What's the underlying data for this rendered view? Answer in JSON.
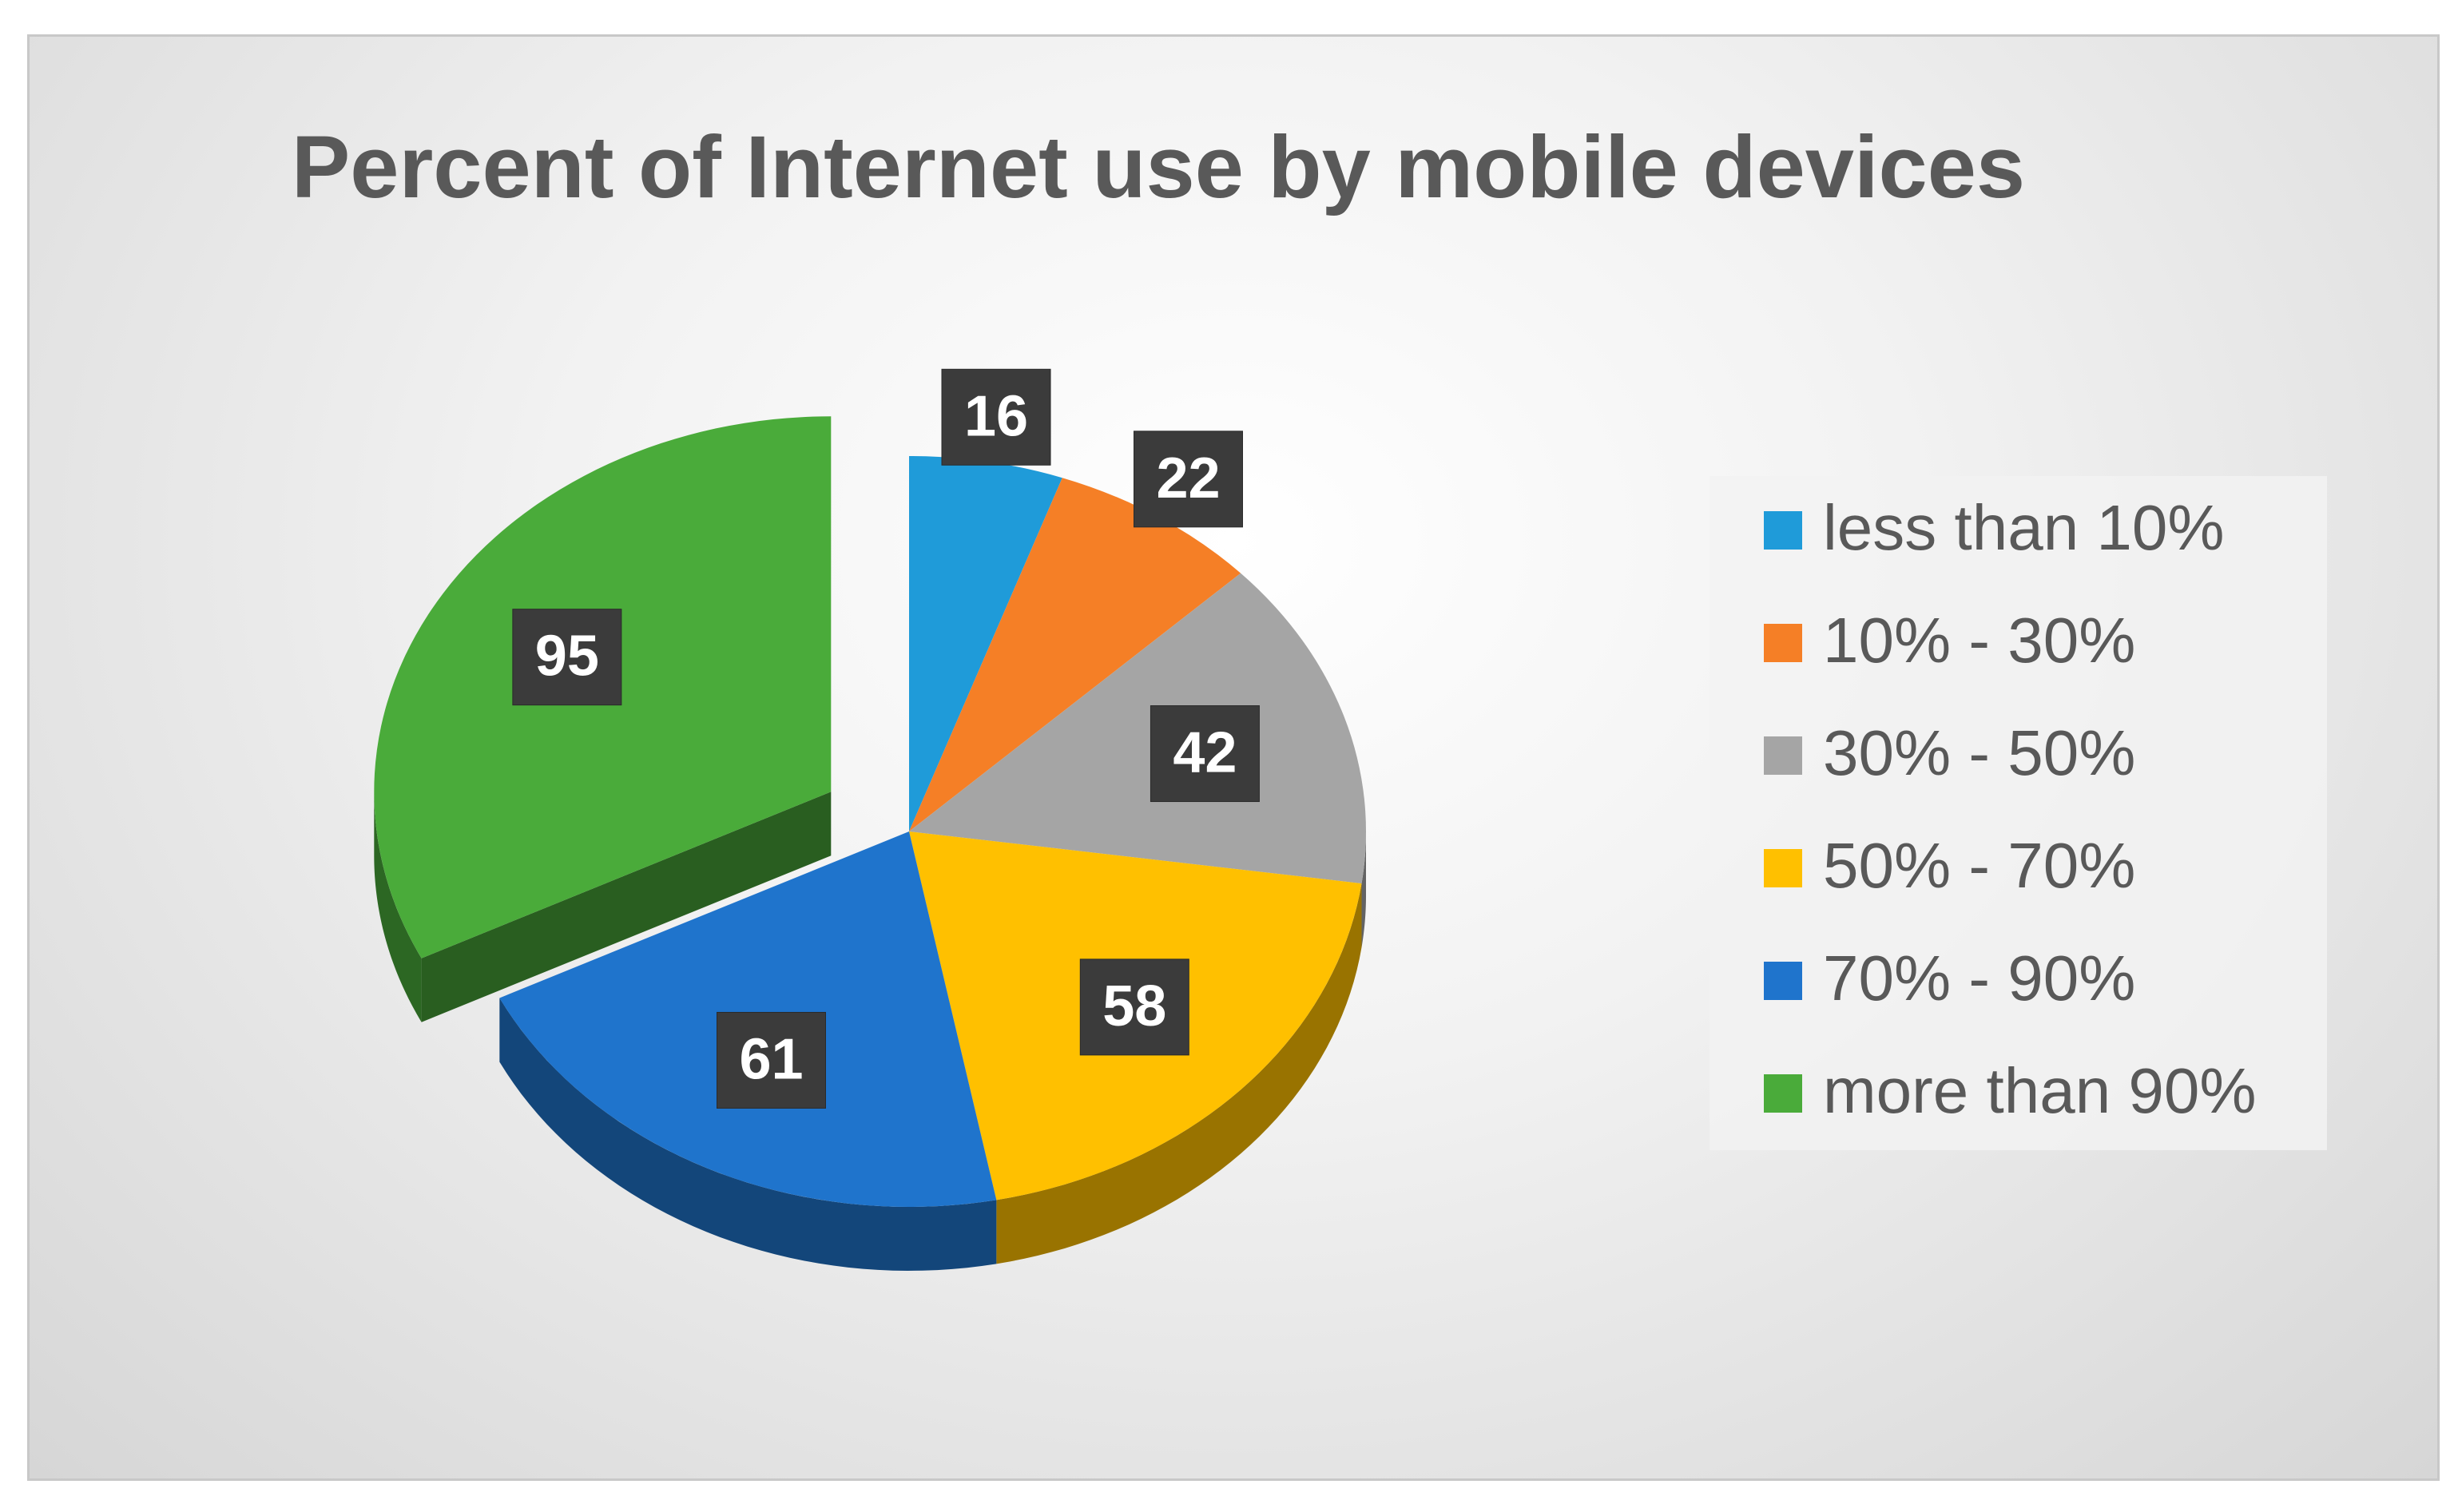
{
  "chart_data": {
    "type": "pie",
    "title": "Percent of Internet use by mobile devices",
    "categories": [
      "less than 10%",
      "10% - 30%",
      "30% - 50%",
      "50% - 70%",
      "70% - 90%",
      "more than 90%"
    ],
    "values": [
      16,
      22,
      42,
      58,
      61,
      95
    ],
    "colors": [
      "#1f9bd9",
      "#f57f26",
      "#a5a5a5",
      "#ffc000",
      "#1f74cc",
      "#4aab3a"
    ],
    "exploded": [
      5
    ],
    "legend": "right"
  }
}
